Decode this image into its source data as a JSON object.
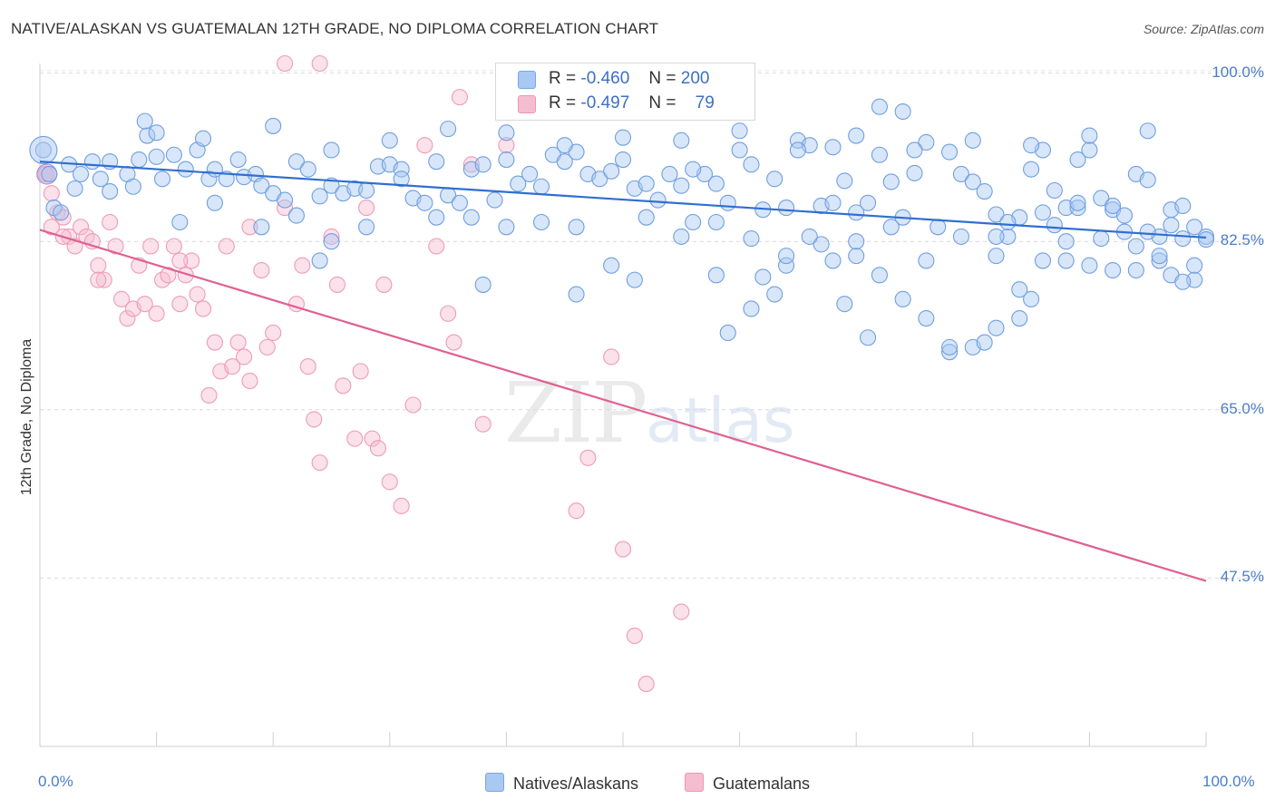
{
  "title": "NATIVE/ALASKAN VS GUATEMALAN 12TH GRADE, NO DIPLOMA CORRELATION CHART",
  "source": "Source: ZipAtlas.com",
  "watermark": {
    "zip": "ZIP",
    "atlas": "atlas"
  },
  "legend": {
    "r_label": "R =",
    "n_label": "N =",
    "series": [
      {
        "r": "-0.460",
        "n": "200",
        "color": "#a9c8f2"
      },
      {
        "r": "-0.497",
        "n": "79",
        "color": "#f6bdd0"
      }
    ]
  },
  "bottom_legend": [
    {
      "label": "Natives/Alaskans",
      "color": "#a9c8f2"
    },
    {
      "label": "Guatemalans",
      "color": "#f6bdd0"
    }
  ],
  "chart_data": {
    "type": "scatter",
    "title": "NATIVE/ALASKAN VS GUATEMALAN 12TH GRADE, NO DIPLOMA CORRELATION CHART",
    "xlabel": "",
    "ylabel": "12th Grade, No Diploma",
    "xlim": [
      0,
      100
    ],
    "ylim": [
      30,
      101
    ],
    "x_tick_labels": [
      "0.0%",
      "100.0%"
    ],
    "y_ticks": [
      47.5,
      65.0,
      82.5,
      100.0
    ],
    "y_tick_labels": [
      "47.5%",
      "65.0%",
      "82.5%",
      "100.0%"
    ],
    "grid": true,
    "legend_placement": "top-center",
    "series": [
      {
        "name": "Natives/Alaskans",
        "color": "#6f9fe0",
        "trend": {
          "x": [
            0,
            100
          ],
          "y": [
            90.8,
            82.9
          ]
        },
        "points": [
          [
            0.3,
            92
          ],
          [
            0.8,
            89.5
          ],
          [
            1.2,
            86
          ],
          [
            1.8,
            85.5
          ],
          [
            2.5,
            90.5
          ],
          [
            3.5,
            89.5
          ],
          [
            4.5,
            90.8
          ],
          [
            5.2,
            89
          ],
          [
            6,
            90.8
          ],
          [
            7.5,
            89.5
          ],
          [
            8.5,
            91
          ],
          [
            9.2,
            93.5
          ],
          [
            10,
            91.3
          ],
          [
            10.5,
            89
          ],
          [
            11.5,
            91.5
          ],
          [
            12.5,
            90
          ],
          [
            13.5,
            92
          ],
          [
            14.5,
            89
          ],
          [
            15,
            90
          ],
          [
            16,
            89
          ],
          [
            17,
            91
          ],
          [
            17.5,
            89.2
          ],
          [
            18.5,
            89.5
          ],
          [
            19,
            88.3
          ],
          [
            20,
            87.5
          ],
          [
            21,
            86.8
          ],
          [
            22,
            90.8
          ],
          [
            23,
            90
          ],
          [
            24,
            87.2
          ],
          [
            25,
            88.3
          ],
          [
            26,
            87.5
          ],
          [
            27,
            88
          ],
          [
            28,
            87.8
          ],
          [
            29,
            90.3
          ],
          [
            30,
            90.5
          ],
          [
            31,
            90
          ],
          [
            32,
            87
          ],
          [
            33,
            86.5
          ],
          [
            34,
            90.8
          ],
          [
            35,
            87.3
          ],
          [
            36,
            86.5
          ],
          [
            37,
            90
          ],
          [
            38,
            90.5
          ],
          [
            39,
            86.8
          ],
          [
            40,
            91
          ],
          [
            41,
            88.5
          ],
          [
            42,
            89.5
          ],
          [
            43,
            88.2
          ],
          [
            44,
            91.5
          ],
          [
            45,
            90.8
          ],
          [
            46,
            91.8
          ],
          [
            47,
            89.5
          ],
          [
            48,
            89
          ],
          [
            49,
            89.8
          ],
          [
            50,
            91
          ],
          [
            51,
            88
          ],
          [
            52,
            88.5
          ],
          [
            53,
            86.8
          ],
          [
            54,
            89.5
          ],
          [
            55,
            88.3
          ],
          [
            56,
            84.5
          ],
          [
            57,
            89.5
          ],
          [
            58,
            88.5
          ],
          [
            59,
            86.5
          ],
          [
            60,
            92
          ],
          [
            61,
            90.5
          ],
          [
            62,
            85.8
          ],
          [
            63,
            89
          ],
          [
            64,
            86
          ],
          [
            65,
            93
          ],
          [
            66,
            92.5
          ],
          [
            67,
            86.2
          ],
          [
            68,
            92.3
          ],
          [
            69,
            88.8
          ],
          [
            70,
            85.5
          ],
          [
            71,
            86.5
          ],
          [
            72,
            91.5
          ],
          [
            73,
            88.7
          ],
          [
            74,
            85
          ],
          [
            75,
            89.6
          ],
          [
            76,
            92.8
          ],
          [
            77,
            84
          ],
          [
            78,
            91.8
          ],
          [
            79,
            89.5
          ],
          [
            80,
            88.7
          ],
          [
            81,
            87.7
          ],
          [
            82,
            85.3
          ],
          [
            83,
            83
          ],
          [
            84,
            85
          ],
          [
            85,
            90
          ],
          [
            86,
            92
          ],
          [
            87,
            87.8
          ],
          [
            88,
            86
          ],
          [
            89,
            91
          ],
          [
            90,
            92
          ],
          [
            91,
            87
          ],
          [
            92,
            85.8
          ],
          [
            93,
            83.5
          ],
          [
            94,
            89.5
          ],
          [
            95,
            88.9
          ],
          [
            96,
            83
          ],
          [
            97,
            85.8
          ],
          [
            98,
            86.2
          ],
          [
            99,
            84
          ],
          [
            100,
            83
          ],
          [
            3,
            88
          ],
          [
            6,
            87.7
          ],
          [
            8,
            88.2
          ],
          [
            12,
            84.5
          ],
          [
            15,
            86.5
          ],
          [
            19,
            84
          ],
          [
            22,
            85.2
          ],
          [
            25,
            82.5
          ],
          [
            28,
            84
          ],
          [
            31,
            89
          ],
          [
            34,
            85
          ],
          [
            37,
            85
          ],
          [
            40,
            84
          ],
          [
            43,
            84.5
          ],
          [
            46,
            84
          ],
          [
            49,
            80
          ],
          [
            52,
            85
          ],
          [
            55,
            83
          ],
          [
            58,
            79
          ],
          [
            61,
            82.8
          ],
          [
            64,
            80
          ],
          [
            67,
            82.2
          ],
          [
            70,
            81
          ],
          [
            73,
            84
          ],
          [
            76,
            80.5
          ],
          [
            79,
            83
          ],
          [
            82,
            81
          ],
          [
            85,
            76.5
          ],
          [
            88,
            80.5
          ],
          [
            91,
            82.8
          ],
          [
            94,
            79.5
          ],
          [
            97,
            79
          ],
          [
            99,
            78.5
          ],
          [
            62,
            78.8
          ],
          [
            64,
            81
          ],
          [
            66,
            83
          ],
          [
            68,
            80.5
          ],
          [
            70,
            82.5
          ],
          [
            72,
            79
          ],
          [
            74,
            76.5
          ],
          [
            76,
            74.5
          ],
          [
            78,
            71
          ],
          [
            80,
            71.5
          ],
          [
            82,
            73.5
          ],
          [
            84,
            77.5
          ],
          [
            86,
            80.5
          ],
          [
            88,
            82.5
          ],
          [
            90,
            80
          ],
          [
            92,
            79.5
          ],
          [
            94,
            82
          ],
          [
            96,
            80.5
          ],
          [
            98,
            82.8
          ],
          [
            9,
            95
          ],
          [
            10,
            93.8
          ],
          [
            14,
            93.2
          ],
          [
            20,
            94.5
          ],
          [
            25,
            92
          ],
          [
            30,
            93
          ],
          [
            35,
            94.2
          ],
          [
            40,
            93.8
          ],
          [
            45,
            92.5
          ],
          [
            50,
            93.3
          ],
          [
            55,
            93
          ],
          [
            60,
            94
          ],
          [
            65,
            92
          ],
          [
            70,
            93.5
          ],
          [
            75,
            92
          ],
          [
            80,
            93
          ],
          [
            85,
            92.5
          ],
          [
            90,
            93.5
          ],
          [
            95,
            94
          ],
          [
            72,
            96.5
          ],
          [
            74,
            96
          ],
          [
            83,
            84.5
          ],
          [
            87,
            84.2
          ],
          [
            24,
            80.5
          ],
          [
            38,
            78
          ],
          [
            46,
            77
          ],
          [
            51,
            78.5
          ],
          [
            59,
            73
          ],
          [
            61,
            75.5
          ],
          [
            63,
            77
          ],
          [
            69,
            76
          ],
          [
            71,
            72.5
          ],
          [
            78,
            71.5
          ],
          [
            81,
            72
          ],
          [
            84,
            74.5
          ],
          [
            96,
            81
          ],
          [
            98,
            78.3
          ],
          [
            99,
            80
          ],
          [
            82,
            83
          ],
          [
            86,
            85.5
          ],
          [
            89,
            86
          ],
          [
            92,
            86.2
          ],
          [
            100,
            82.7
          ],
          [
            93,
            85.2
          ],
          [
            95,
            83.5
          ],
          [
            97,
            84.2
          ],
          [
            56,
            90
          ],
          [
            58,
            84.5
          ],
          [
            68,
            86.5
          ],
          [
            89,
            86.5
          ]
        ]
      },
      {
        "name": "Guatemalans",
        "color": "#ee9bb8",
        "trend": {
          "x": [
            0,
            100
          ],
          "y": [
            83.7,
            47.2
          ]
        },
        "points": [
          [
            0.5,
            89.5
          ],
          [
            1,
            87.5
          ],
          [
            1.5,
            85.5
          ],
          [
            2,
            85
          ],
          [
            2.5,
            83
          ],
          [
            3,
            82
          ],
          [
            3.5,
            84
          ],
          [
            4,
            83
          ],
          [
            4.5,
            82.5
          ],
          [
            5,
            80
          ],
          [
            5.5,
            78.5
          ],
          [
            6,
            84.5
          ],
          [
            6.5,
            82
          ],
          [
            7,
            76.5
          ],
          [
            7.5,
            74.5
          ],
          [
            8,
            75.5
          ],
          [
            8.5,
            80
          ],
          [
            9,
            76
          ],
          [
            9.5,
            82
          ],
          [
            10,
            75
          ],
          [
            10.5,
            78.5
          ],
          [
            11,
            79
          ],
          [
            11.5,
            82
          ],
          [
            12,
            76
          ],
          [
            12.5,
            79
          ],
          [
            13,
            80.5
          ],
          [
            13.5,
            77
          ],
          [
            14,
            75.5
          ],
          [
            14.5,
            66.5
          ],
          [
            15,
            72
          ],
          [
            15.5,
            69
          ],
          [
            16,
            82
          ],
          [
            16.5,
            69.5
          ],
          [
            17,
            72
          ],
          [
            17.5,
            70.5
          ],
          [
            18,
            68
          ],
          [
            19,
            79.5
          ],
          [
            19.5,
            71.5
          ],
          [
            20,
            73
          ],
          [
            21,
            86
          ],
          [
            22,
            76
          ],
          [
            22.5,
            80
          ],
          [
            23,
            69.5
          ],
          [
            23.5,
            64
          ],
          [
            24,
            59.5
          ],
          [
            25,
            83
          ],
          [
            25.5,
            78
          ],
          [
            26,
            67.5
          ],
          [
            27,
            62
          ],
          [
            27.5,
            69
          ],
          [
            28,
            86
          ],
          [
            28.5,
            62
          ],
          [
            29,
            61
          ],
          [
            29.5,
            78
          ],
          [
            30,
            57.5
          ],
          [
            31,
            55
          ],
          [
            32,
            65.5
          ],
          [
            33,
            92.5
          ],
          [
            34,
            82
          ],
          [
            35,
            75
          ],
          [
            35.5,
            72
          ],
          [
            36,
            97.5
          ],
          [
            37,
            90.5
          ],
          [
            38,
            63.5
          ],
          [
            40,
            92.5
          ],
          [
            46,
            54.5
          ],
          [
            47,
            60
          ],
          [
            49,
            70.5
          ],
          [
            50,
            50.5
          ],
          [
            51,
            41.5
          ],
          [
            52,
            36.5
          ],
          [
            55,
            44
          ],
          [
            21,
            101
          ],
          [
            24,
            101
          ],
          [
            1,
            84
          ],
          [
            2,
            83
          ],
          [
            5,
            78.5
          ],
          [
            12,
            80.5
          ],
          [
            18,
            84
          ]
        ]
      }
    ]
  }
}
